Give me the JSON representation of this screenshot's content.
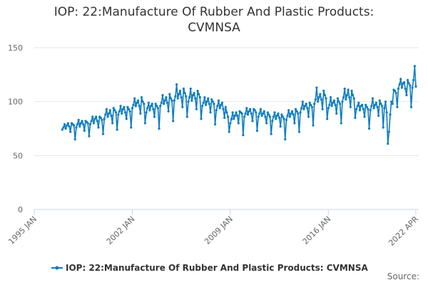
{
  "chart_data": {
    "type": "line",
    "title": "IOP: 22:Manufacture Of Rubber And Plastic Products: CVMNSA",
    "source": "Source:",
    "x": [
      "1997-01",
      "1997-02",
      "1997-03",
      "1997-04",
      "1997-05",
      "1997-06",
      "1997-07",
      "1997-08",
      "1997-09",
      "1997-10",
      "1997-11",
      "1997-12",
      "1998-01",
      "1998-02",
      "1998-03",
      "1998-04",
      "1998-05",
      "1998-06",
      "1998-07",
      "1998-08",
      "1998-09",
      "1998-10",
      "1998-11",
      "1998-12",
      "1999-01",
      "1999-02",
      "1999-03",
      "1999-04",
      "1999-05",
      "1999-06",
      "1999-07",
      "1999-08",
      "1999-09",
      "1999-10",
      "1999-11",
      "1999-12",
      "2000-01",
      "2000-02",
      "2000-03",
      "2000-04",
      "2000-05",
      "2000-06",
      "2000-07",
      "2000-08",
      "2000-09",
      "2000-10",
      "2000-11",
      "2000-12",
      "2001-01",
      "2001-02",
      "2001-03",
      "2001-04",
      "2001-05",
      "2001-06",
      "2001-07",
      "2001-08",
      "2001-09",
      "2001-10",
      "2001-11",
      "2001-12",
      "2002-01",
      "2002-02",
      "2002-03",
      "2002-04",
      "2002-05",
      "2002-06",
      "2002-07",
      "2002-08",
      "2002-09",
      "2002-10",
      "2002-11",
      "2002-12",
      "2003-01",
      "2003-02",
      "2003-03",
      "2003-04",
      "2003-05",
      "2003-06",
      "2003-07",
      "2003-08",
      "2003-09",
      "2003-10",
      "2003-11",
      "2003-12",
      "2004-01",
      "2004-02",
      "2004-03",
      "2004-04",
      "2004-05",
      "2004-06",
      "2004-07",
      "2004-08",
      "2004-09",
      "2004-10",
      "2004-11",
      "2004-12",
      "2005-01",
      "2005-02",
      "2005-03",
      "2005-04",
      "2005-05",
      "2005-06",
      "2005-07",
      "2005-08",
      "2005-09",
      "2005-10",
      "2005-11",
      "2005-12",
      "2006-01",
      "2006-02",
      "2006-03",
      "2006-04",
      "2006-05",
      "2006-06",
      "2006-07",
      "2006-08",
      "2006-09",
      "2006-10",
      "2006-11",
      "2006-12",
      "2007-01",
      "2007-02",
      "2007-03",
      "2007-04",
      "2007-05",
      "2007-06",
      "2007-07",
      "2007-08",
      "2007-09",
      "2007-10",
      "2007-11",
      "2007-12",
      "2008-01",
      "2008-02",
      "2008-03",
      "2008-04",
      "2008-05",
      "2008-06",
      "2008-07",
      "2008-08",
      "2008-09",
      "2008-10",
      "2008-11",
      "2008-12",
      "2009-01",
      "2009-02",
      "2009-03",
      "2009-04",
      "2009-05",
      "2009-06",
      "2009-07",
      "2009-08",
      "2009-09",
      "2009-10",
      "2009-11",
      "2009-12",
      "2010-01",
      "2010-02",
      "2010-03",
      "2010-04",
      "2010-05",
      "2010-06",
      "2010-07",
      "2010-08",
      "2010-09",
      "2010-10",
      "2010-11",
      "2010-12",
      "2011-01",
      "2011-02",
      "2011-03",
      "2011-04",
      "2011-05",
      "2011-06",
      "2011-07",
      "2011-08",
      "2011-09",
      "2011-10",
      "2011-11",
      "2011-12",
      "2012-01",
      "2012-02",
      "2012-03",
      "2012-04",
      "2012-05",
      "2012-06",
      "2012-07",
      "2012-08",
      "2012-09",
      "2012-10",
      "2012-11",
      "2012-12",
      "2013-01",
      "2013-02",
      "2013-03",
      "2013-04",
      "2013-05",
      "2013-06",
      "2013-07",
      "2013-08",
      "2013-09",
      "2013-10",
      "2013-11",
      "2013-12",
      "2014-01",
      "2014-02",
      "2014-03",
      "2014-04",
      "2014-05",
      "2014-06",
      "2014-07",
      "2014-08",
      "2014-09",
      "2014-10",
      "2014-11",
      "2014-12",
      "2015-01",
      "2015-02",
      "2015-03",
      "2015-04",
      "2015-05",
      "2015-06",
      "2015-07",
      "2015-08",
      "2015-09",
      "2015-10",
      "2015-11",
      "2015-12",
      "2016-01",
      "2016-02",
      "2016-03",
      "2016-04",
      "2016-05",
      "2016-06",
      "2016-07",
      "2016-08",
      "2016-09",
      "2016-10",
      "2016-11",
      "2016-12",
      "2017-01",
      "2017-02",
      "2017-03",
      "2017-04",
      "2017-05",
      "2017-06",
      "2017-07",
      "2017-08",
      "2017-09",
      "2017-10",
      "2017-11",
      "2017-12",
      "2018-01",
      "2018-02",
      "2018-03",
      "2018-04",
      "2018-05",
      "2018-06",
      "2018-07",
      "2018-08",
      "2018-09",
      "2018-10",
      "2018-11",
      "2018-12",
      "2019-01",
      "2019-02",
      "2019-03",
      "2019-04",
      "2019-05",
      "2019-06",
      "2019-07",
      "2019-08",
      "2019-09",
      "2019-10",
      "2019-11",
      "2019-12",
      "2020-01",
      "2020-02",
      "2020-03",
      "2020-04",
      "2020-05",
      "2020-06",
      "2020-07",
      "2020-08",
      "2020-09",
      "2020-10",
      "2020-11",
      "2020-12",
      "2021-01",
      "2021-02",
      "2021-03",
      "2021-04",
      "2021-05",
      "2021-06",
      "2021-07",
      "2021-08",
      "2021-09",
      "2021-10",
      "2021-11",
      "2021-12",
      "2022-01",
      "2022-02",
      "2022-03",
      "2022-04"
    ],
    "series": [
      {
        "name": "IOP: 22:Manufacture Of Rubber And Plastic Products: CVMNSA",
        "color": "#0e7cc2",
        "values": [
          74,
          76,
          79,
          75,
          78,
          80,
          77,
          72,
          80,
          79,
          78,
          65,
          76,
          79,
          83,
          77,
          80,
          82,
          79,
          73,
          82,
          81,
          80,
          68,
          79,
          82,
          86,
          80,
          84,
          86,
          82,
          76,
          86,
          85,
          83,
          70,
          84,
          88,
          93,
          86,
          89,
          92,
          87,
          80,
          94,
          92,
          90,
          74,
          88,
          91,
          96,
          89,
          93,
          95,
          90,
          84,
          95,
          93,
          91,
          76,
          94,
          97,
          103,
          96,
          99,
          101,
          96,
          89,
          104,
          100,
          98,
          80,
          90,
          94,
          99,
          92,
          96,
          98,
          93,
          86,
          98,
          96,
          94,
          75,
          96,
          99,
          106,
          98,
          101,
          104,
          99,
          91,
          107,
          103,
          101,
          82,
          101,
          105,
          116,
          103,
          107,
          110,
          104,
          95,
          112,
          108,
          105,
          86,
          100,
          104,
          112,
          101,
          106,
          108,
          103,
          93,
          110,
          107,
          104,
          84,
          96,
          99,
          104,
          97,
          100,
          103,
          98,
          90,
          102,
          100,
          98,
          79,
          92,
          96,
          101,
          94,
          97,
          99,
          93,
          85,
          95,
          90,
          86,
          72,
          80,
          84,
          90,
          84,
          87,
          90,
          87,
          80,
          91,
          90,
          89,
          69,
          86,
          89,
          94,
          88,
          91,
          93,
          89,
          82,
          93,
          92,
          90,
          73,
          86,
          89,
          93,
          87,
          89,
          91,
          86,
          80,
          90,
          88,
          86,
          70,
          82,
          86,
          90,
          84,
          87,
          89,
          85,
          77,
          88,
          86,
          84,
          65,
          83,
          87,
          92,
          86,
          89,
          91,
          88,
          80,
          93,
          91,
          89,
          72,
          90,
          94,
          100,
          93,
          96,
          98,
          94,
          86,
          99,
          97,
          95,
          78,
          98,
          102,
          113,
          100,
          104,
          107,
          102,
          93,
          110,
          106,
          103,
          84,
          94,
          97,
          104,
          96,
          99,
          101,
          97,
          89,
          103,
          100,
          98,
          80,
          100,
          104,
          112,
          102,
          106,
          111,
          104,
          95,
          110,
          106,
          103,
          85,
          93,
          96,
          99,
          92,
          96,
          97,
          93,
          86,
          97,
          95,
          93,
          75,
          92,
          96,
          103,
          94,
          97,
          99,
          95,
          87,
          101,
          98,
          96,
          76,
          94,
          100,
          90,
          61,
          72,
          88,
          100,
          98,
          111,
          110,
          108,
          95,
          112,
          116,
          121,
          113,
          117,
          118,
          112,
          106,
          120,
          117,
          115,
          95,
          113,
          120,
          133,
          114
        ]
      }
    ],
    "xlim": [
      "1995-01",
      "2022-04"
    ],
    "xticks": [
      {
        "value": "1995-01",
        "label": "1995 JAN"
      },
      {
        "value": "2002-01",
        "label": "2002 JAN"
      },
      {
        "value": "2009-01",
        "label": "2009 JAN"
      },
      {
        "value": "2016-01",
        "label": "2016 JAN"
      },
      {
        "value": "2022-04",
        "label": "2022 APR"
      }
    ],
    "ylim": [
      0,
      150
    ],
    "yticks": [
      0,
      50,
      100,
      150
    ],
    "grid": true,
    "legend": "bottom"
  }
}
